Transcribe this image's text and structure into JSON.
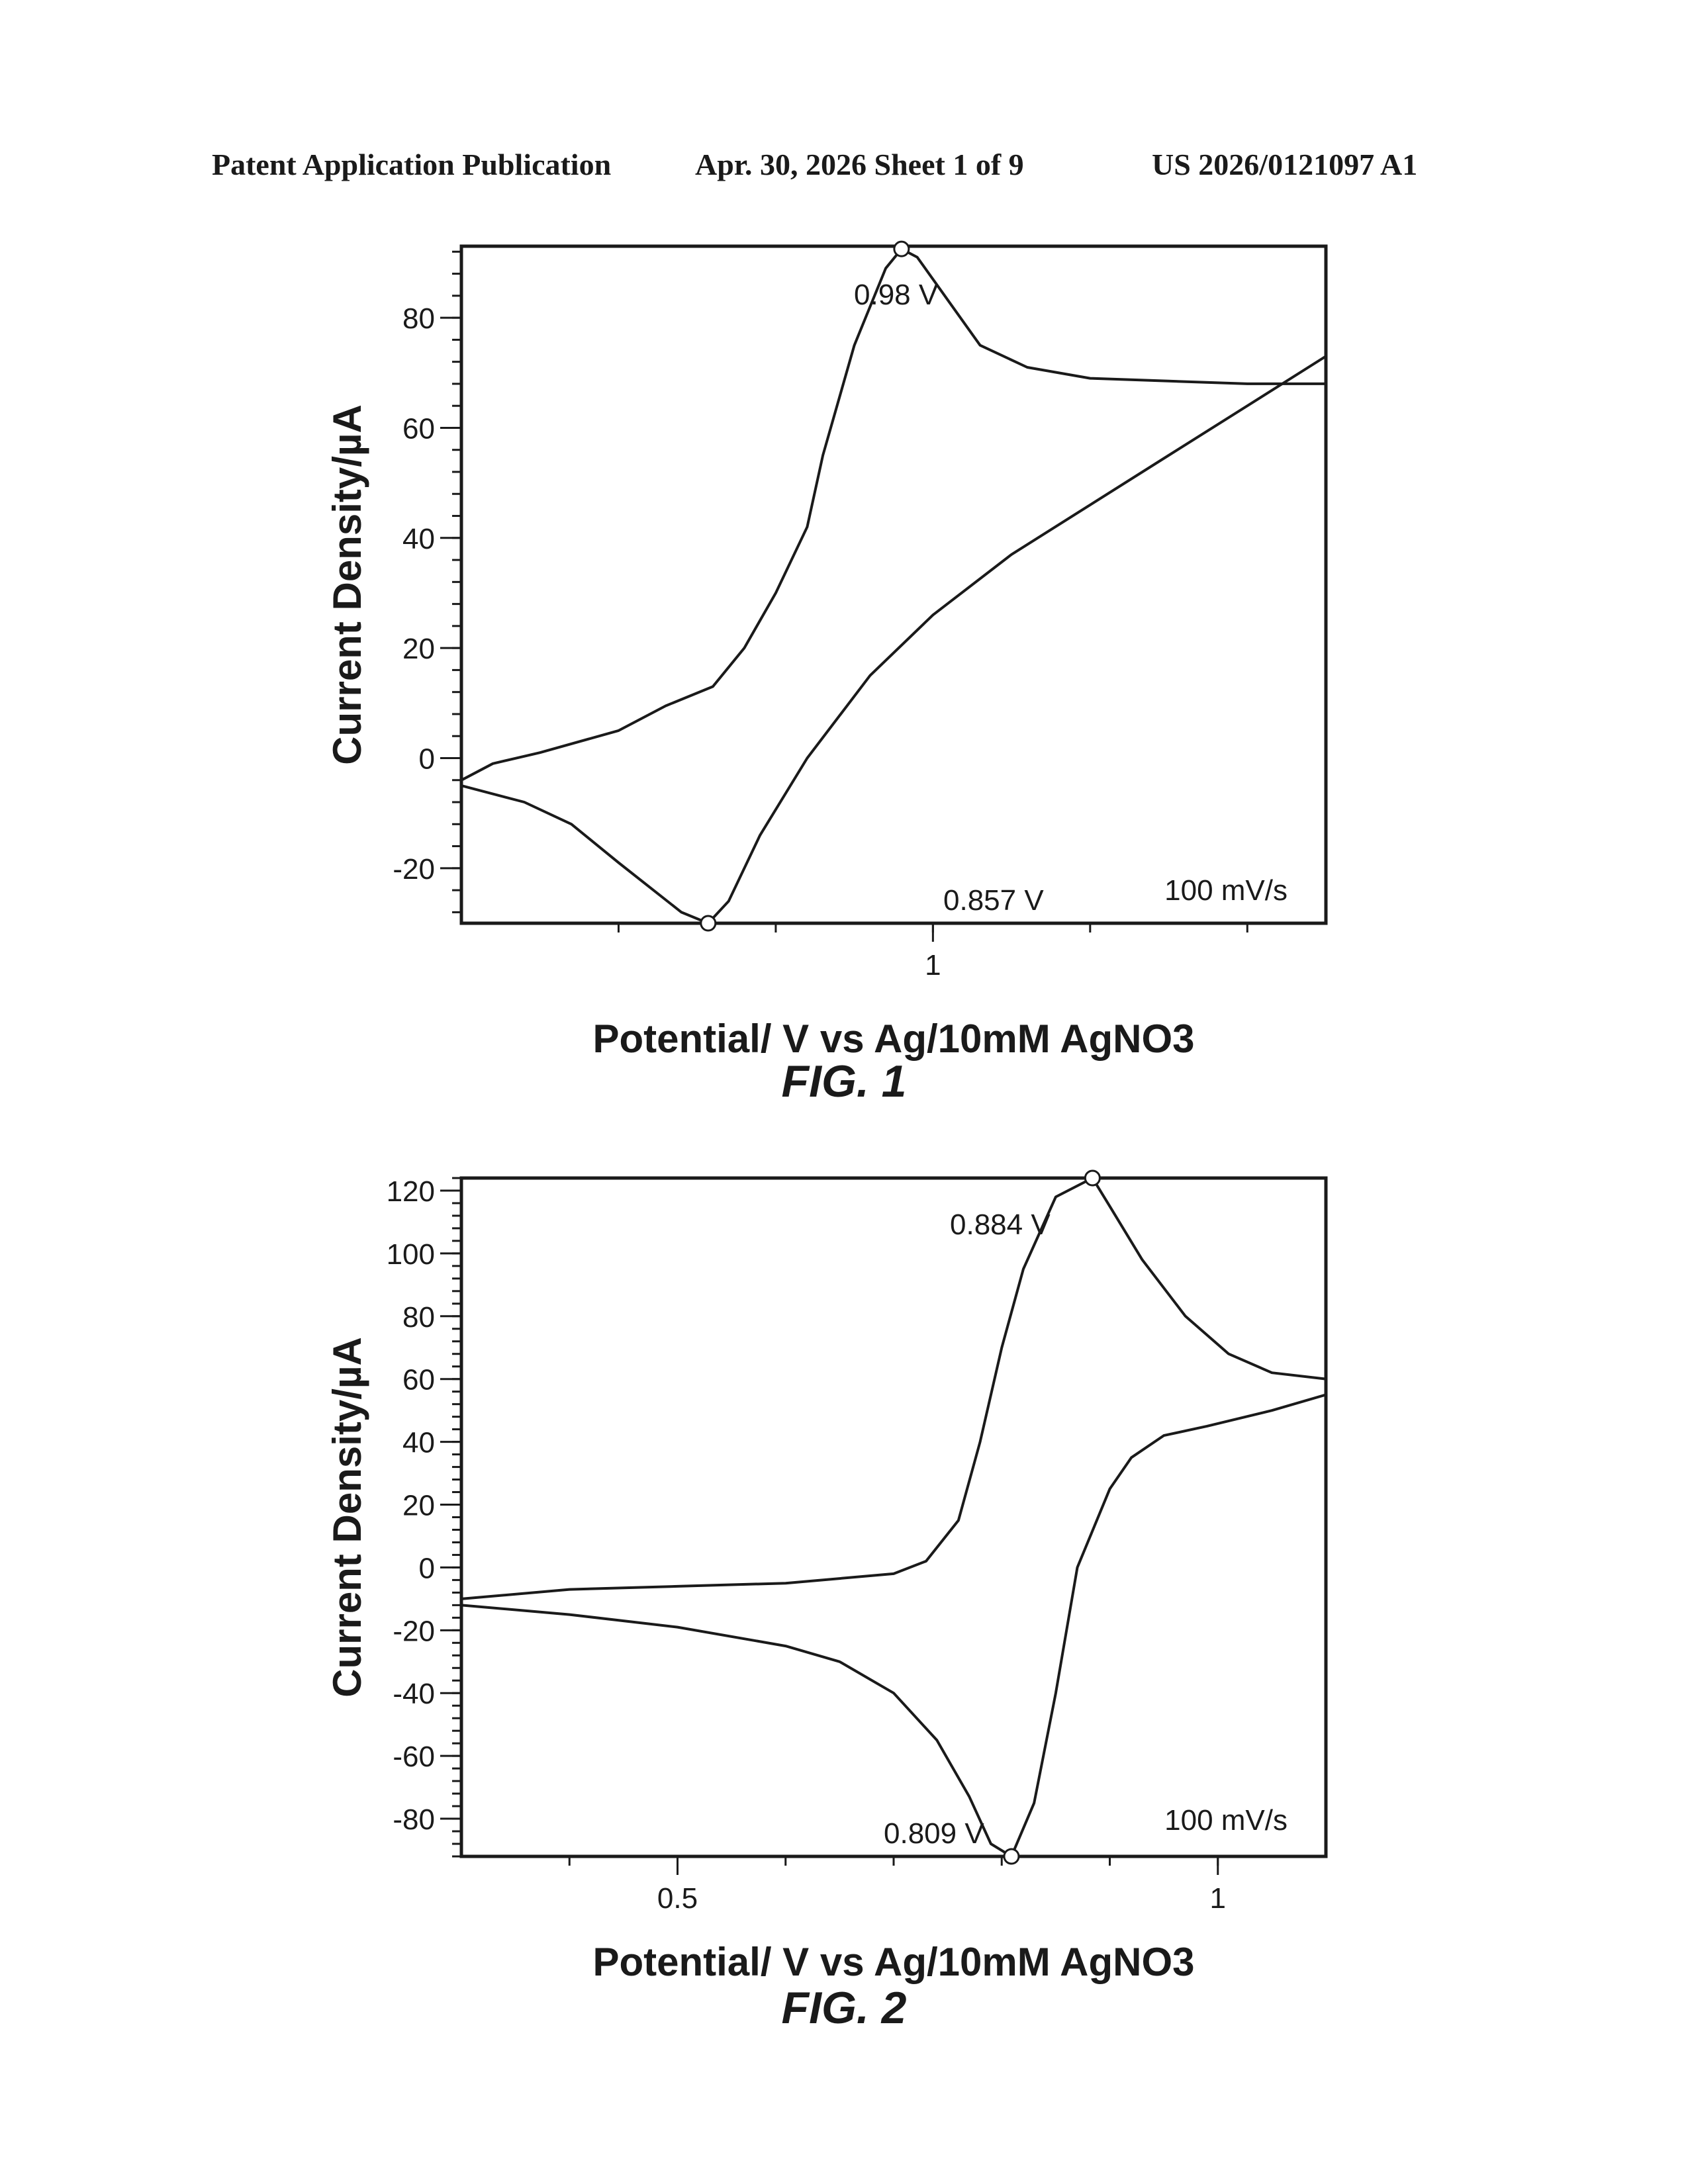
{
  "header": {
    "publication": "Patent Application Publication",
    "date_sheet": "Apr. 30, 2026  Sheet 1 of 9",
    "number": "US 2026/0121097 A1"
  },
  "chart_data": [
    {
      "type": "line",
      "figure_label": "FIG. 1",
      "xlabel": "Potential/ V vs Ag/10mM AgNO3",
      "ylabel": "Current Density/µA",
      "xlim": [
        0.7,
        1.25
      ],
      "ylim": [
        -30,
        93
      ],
      "x_ticks": [
        {
          "value": 1,
          "label": "1"
        }
      ],
      "x_minor_step": 0.1,
      "y_ticks": [
        -20,
        0,
        20,
        40,
        60,
        80
      ],
      "y_minor_step": 4,
      "grid": false,
      "annotations": {
        "anodic_peak": "0.98 V",
        "cathodic_peak": "0.857 V",
        "scan_rate": "100 mV/s"
      },
      "peaks": [
        {
          "x": 0.98,
          "y": 92.5,
          "label": "0.98 V"
        },
        {
          "x": 0.857,
          "y": -30,
          "label": "0.857 V"
        }
      ],
      "series": [
        {
          "points": [
            [
              0.7,
              -4
            ],
            [
              0.72,
              -1
            ],
            [
              0.75,
              1
            ],
            [
              0.8,
              5
            ],
            [
              0.83,
              9.5
            ],
            [
              0.86,
              13
            ],
            [
              0.88,
              20
            ],
            [
              0.9,
              30
            ],
            [
              0.92,
              42
            ],
            [
              0.93,
              55
            ],
            [
              0.95,
              75
            ],
            [
              0.97,
              89
            ],
            [
              0.98,
              92.5
            ],
            [
              0.99,
              91
            ],
            [
              1.01,
              83
            ],
            [
              1.03,
              75
            ],
            [
              1.06,
              71
            ],
            [
              1.1,
              69
            ],
            [
              1.15,
              68.5
            ],
            [
              1.2,
              68
            ],
            [
              1.25,
              68
            ]
          ]
        },
        {
          "points": [
            [
              1.25,
              73
            ],
            [
              1.2,
              64
            ],
            [
              1.15,
              55
            ],
            [
              1.1,
              46
            ],
            [
              1.05,
              37
            ],
            [
              1.0,
              26
            ],
            [
              0.96,
              15
            ],
            [
              0.92,
              0
            ],
            [
              0.89,
              -14
            ],
            [
              0.87,
              -26
            ],
            [
              0.857,
              -30
            ],
            [
              0.84,
              -28
            ],
            [
              0.8,
              -19
            ],
            [
              0.77,
              -12
            ],
            [
              0.74,
              -8
            ],
            [
              0.7,
              -5
            ]
          ]
        }
      ]
    },
    {
      "type": "line",
      "figure_label": "FIG. 2",
      "xlabel": "Potential/ V vs Ag/10mM AgNO3",
      "ylabel": "Current Density/µA",
      "xlim": [
        0.3,
        1.1
      ],
      "ylim": [
        -92,
        124
      ],
      "x_ticks": [
        {
          "value": 0.5,
          "label": "0.5"
        },
        {
          "value": 1,
          "label": "1"
        }
      ],
      "x_minor_step": 0.1,
      "y_ticks": [
        -80,
        -60,
        -40,
        -20,
        0,
        20,
        40,
        60,
        80,
        100,
        120
      ],
      "y_minor_step": 4,
      "grid": false,
      "annotations": {
        "anodic_peak": "0.884 V",
        "cathodic_peak": "0.809 V",
        "scan_rate": "100 mV/s"
      },
      "peaks": [
        {
          "x": 0.884,
          "y": 124,
          "label": "0.884 V"
        },
        {
          "x": 0.809,
          "y": -92,
          "label": "0.809 V"
        }
      ],
      "series": [
        {
          "points": [
            [
              0.3,
              -10
            ],
            [
              0.4,
              -7
            ],
            [
              0.5,
              -6
            ],
            [
              0.6,
              -5
            ],
            [
              0.7,
              -2
            ],
            [
              0.73,
              2
            ],
            [
              0.76,
              15
            ],
            [
              0.78,
              40
            ],
            [
              0.8,
              70
            ],
            [
              0.82,
              95
            ],
            [
              0.85,
              118
            ],
            [
              0.884,
              124
            ],
            [
              0.9,
              115
            ],
            [
              0.93,
              98
            ],
            [
              0.97,
              80
            ],
            [
              1.01,
              68
            ],
            [
              1.05,
              62
            ],
            [
              1.1,
              60
            ]
          ]
        },
        {
          "points": [
            [
              1.1,
              55
            ],
            [
              1.05,
              50
            ],
            [
              0.99,
              45
            ],
            [
              0.95,
              42
            ],
            [
              0.92,
              35
            ],
            [
              0.9,
              25
            ],
            [
              0.87,
              0
            ],
            [
              0.85,
              -40
            ],
            [
              0.83,
              -75
            ],
            [
              0.809,
              -92
            ],
            [
              0.79,
              -88
            ],
            [
              0.77,
              -73
            ],
            [
              0.74,
              -55
            ],
            [
              0.7,
              -40
            ],
            [
              0.65,
              -30
            ],
            [
              0.6,
              -25
            ],
            [
              0.5,
              -19
            ],
            [
              0.4,
              -15
            ],
            [
              0.3,
              -12
            ]
          ]
        }
      ]
    }
  ]
}
